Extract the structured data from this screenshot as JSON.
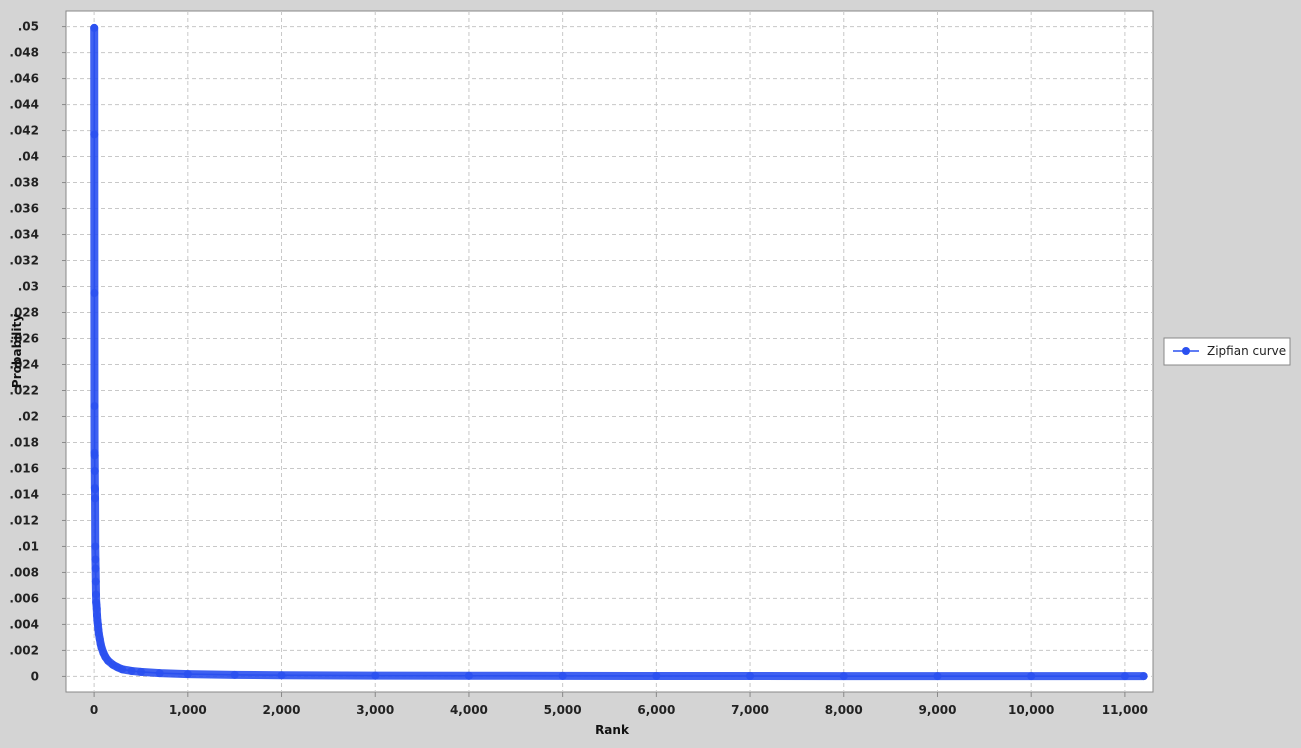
{
  "chart_data": {
    "type": "line",
    "title": "",
    "xlabel": "Rank",
    "ylabel": "Probability",
    "xlim": [
      -300,
      11300
    ],
    "ylim": [
      -0.0012,
      0.0512
    ],
    "x_ticks": [
      0,
      1000,
      2000,
      3000,
      4000,
      5000,
      6000,
      7000,
      8000,
      9000,
      10000,
      11000
    ],
    "x_tick_labels": [
      "0",
      "1,000",
      "2,000",
      "3,000",
      "4,000",
      "5,000",
      "6,000",
      "7,000",
      "8,000",
      "9,000",
      "10,000",
      "11,000"
    ],
    "y_ticks": [
      0,
      0.002,
      0.004,
      0.006,
      0.008,
      0.01,
      0.012,
      0.014,
      0.016,
      0.018,
      0.02,
      0.022,
      0.024,
      0.026,
      0.028,
      0.03,
      0.032,
      0.034,
      0.036,
      0.038,
      0.04,
      0.042,
      0.044,
      0.046,
      0.048,
      0.05
    ],
    "y_tick_labels": [
      "0",
      ".002",
      ".004",
      ".006",
      ".008",
      ".01",
      ".012",
      ".014",
      ".016",
      ".018",
      ".02",
      ".022",
      ".024",
      ".026",
      ".028",
      ".03",
      ".032",
      ".034",
      ".036",
      ".038",
      ".04",
      ".042",
      ".044",
      ".046",
      ".048",
      ".05"
    ],
    "grid": true,
    "legend_position": "right",
    "series": [
      {
        "name": "Zipfian curve",
        "color": "#2a50f0",
        "marker": "circle",
        "x": [
          1,
          2,
          3,
          4,
          5,
          6,
          7,
          8,
          9,
          10,
          12,
          14,
          16,
          18,
          20,
          22,
          25,
          28,
          31,
          35,
          40,
          45,
          50,
          60,
          70,
          80,
          100,
          120,
          150,
          200,
          250,
          300,
          400,
          500,
          700,
          1000,
          1500,
          2000,
          3000,
          4000,
          5000,
          6000,
          7000,
          8000,
          9000,
          10000,
          11000,
          11200
        ],
        "y": [
          0.0499,
          0.0417,
          0.0295,
          0.0208,
          0.0172,
          0.017,
          0.0158,
          0.0145,
          0.0144,
          0.0137,
          0.01,
          0.009,
          0.0083,
          0.0073,
          0.0063,
          0.0057,
          0.0055,
          0.0052,
          0.0047,
          0.0043,
          0.004,
          0.0036,
          0.0033,
          0.0029,
          0.0025,
          0.0022,
          0.0018,
          0.0015,
          0.0012,
          0.0009,
          0.0007,
          0.00055,
          0.00042,
          0.00035,
          0.00025,
          0.00018,
          0.00012,
          9e-05,
          6e-05,
          5e-05,
          4e-05,
          3e-05,
          3e-05,
          2e-05,
          2e-05,
          2e-05,
          2e-05,
          2e-05
        ]
      }
    ]
  }
}
